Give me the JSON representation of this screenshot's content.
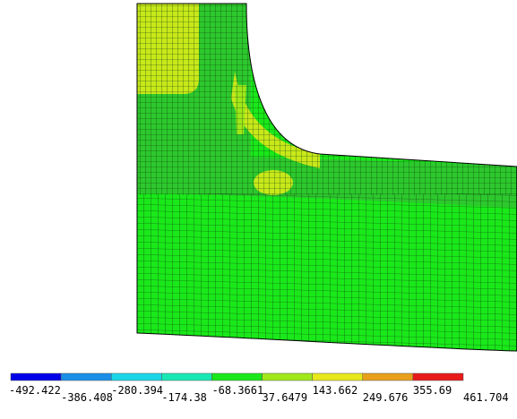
{
  "legend": {
    "colors": [
      "#0000e8",
      "#1a8ee8",
      "#1ad6e8",
      "#1ae8b4",
      "#1ae81a",
      "#a0e81a",
      "#e8e81a",
      "#e8a01a",
      "#e81a1a"
    ],
    "labels": [
      "-492.422",
      "-386.408",
      "-280.394",
      "-174.38",
      "-68.3661",
      "37.6479",
      "143.662",
      "249.676",
      "355.69",
      "461.704"
    ]
  }
}
